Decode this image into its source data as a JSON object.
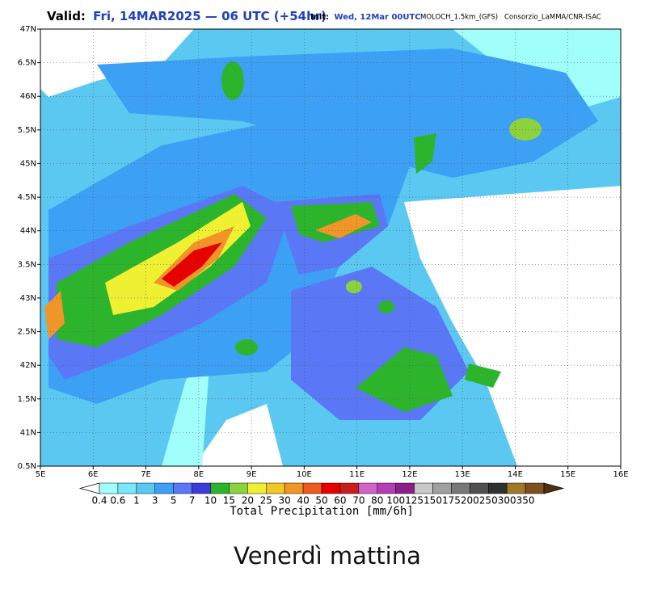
{
  "header": {
    "valid_label": "Valid:",
    "valid_time": "Fri, 14MAR2025 — 06 UTC (+54hr)",
    "init_label": "Init:",
    "init_time": "Wed, 12Mar 00UTC",
    "model": "MOLOCH_1.5km_(GFS)",
    "source": "Consorzio_LaMMA/CNR-ISAC"
  },
  "map": {
    "lat_labels": [
      "47N",
      "6.5N",
      "46N",
      "5.5N",
      "45N",
      "4.5N",
      "44N",
      "3.5N",
      "43N",
      "2.5N",
      "42N",
      "1.5N",
      "41N",
      "0.5N"
    ],
    "lon_labels": [
      "5E",
      "6E",
      "7E",
      "8E",
      "9E",
      "10E",
      "11E",
      "12E",
      "13E",
      "14E",
      "15E",
      "16E"
    ]
  },
  "colorbar": {
    "labels": [
      "0.4",
      "0.6",
      "1",
      "3",
      "5",
      "7",
      "10",
      "15",
      "20",
      "25",
      "30",
      "40",
      "50",
      "60",
      "70",
      "80",
      "100",
      "125",
      "150",
      "175",
      "200",
      "250",
      "300",
      "350"
    ],
    "colors": [
      "#a0fffa",
      "#78e8fa",
      "#5ac8f0",
      "#3ca0f5",
      "#5a78f5",
      "#3c3cdc",
      "#2db42d",
      "#8cd23c",
      "#f0f032",
      "#f0c828",
      "#f09628",
      "#f05a1e",
      "#e60000",
      "#c81e1e",
      "#d264c8",
      "#b43cb4",
      "#8c1e8c",
      "#c8c8c8",
      "#a0a0a0",
      "#787878",
      "#505050",
      "#303030",
      "#a07828",
      "#80501e"
    ],
    "title": "Total Precipitation [mm/6h]"
  },
  "caption": "Venerdì mattina"
}
